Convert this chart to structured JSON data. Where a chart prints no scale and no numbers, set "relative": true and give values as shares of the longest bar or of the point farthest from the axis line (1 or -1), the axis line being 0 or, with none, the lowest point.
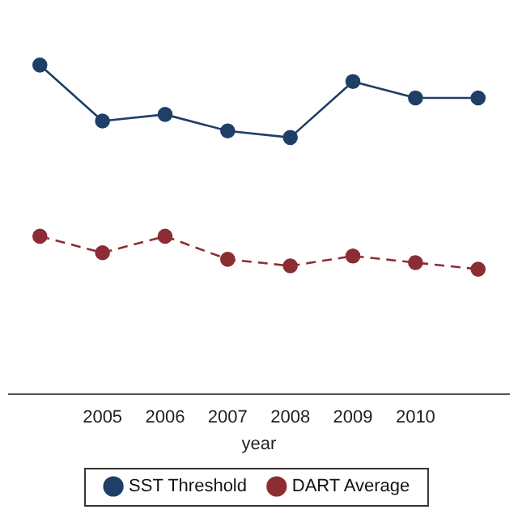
{
  "chart_data": {
    "type": "line",
    "relative": true,
    "xlabel": "year",
    "categories": [
      null,
      "2005",
      "2006",
      "2007",
      "2008",
      "2009",
      "2010",
      null
    ],
    "series": [
      {
        "name": "SST Threshold",
        "color": "#1f3f66",
        "line_style": "solid",
        "values": [
          1,
          0.83,
          0.85,
          0.8,
          0.78,
          0.95,
          0.9,
          0.9
        ]
      },
      {
        "name": "DART Average",
        "color": "#8c2d33",
        "line_style": "dashed",
        "values": [
          0.48,
          0.43,
          0.48,
          0.41,
          0.39,
          0.42,
          0.4,
          0.38
        ]
      }
    ],
    "marker": "circle",
    "grid": false,
    "legend": "bottom"
  }
}
